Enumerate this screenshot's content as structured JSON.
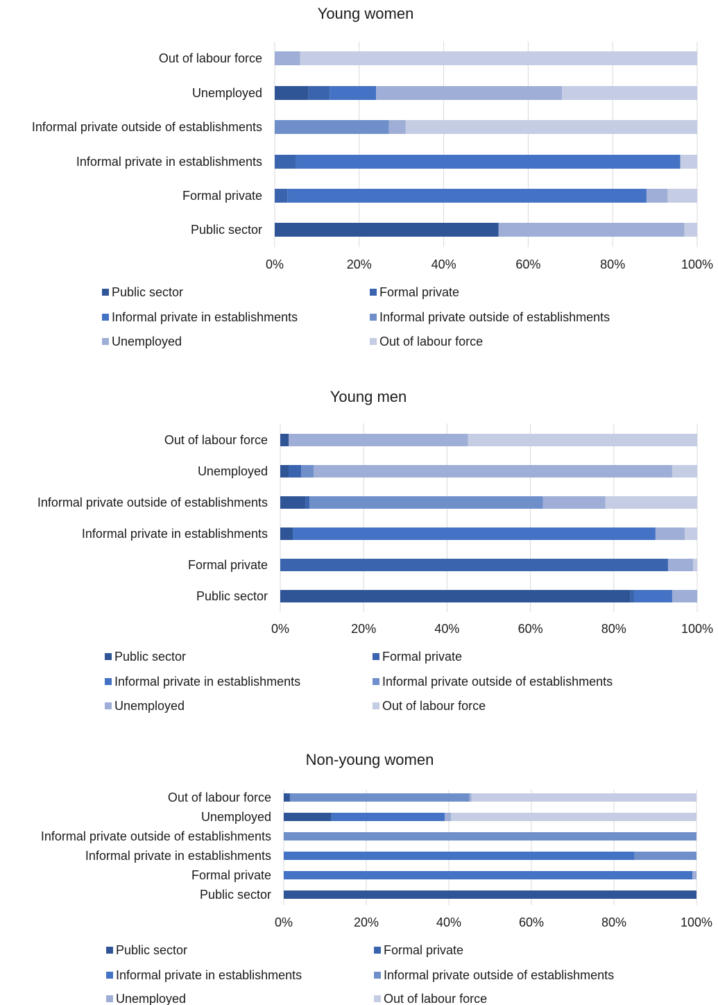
{
  "colors": [
    "#2f5597",
    "#3a64ad",
    "#4472c4",
    "#6f8fcb",
    "#9eaed6",
    "#c5cde4"
  ],
  "chart_data": [
    {
      "type": "bar",
      "orientation": "horizontal",
      "stacked": "percent",
      "title": "Young women",
      "categories": [
        "Out of labour force",
        "Unemployed",
        "Informal private outside of establishments",
        "Informal private in establishments",
        "Formal private",
        "Public sector"
      ],
      "series": [
        {
          "name": "Public sector",
          "values": [
            0,
            8,
            0,
            0,
            0,
            53
          ]
        },
        {
          "name": "Formal private",
          "values": [
            0,
            5,
            0,
            5,
            3,
            0
          ]
        },
        {
          "name": "Informal private in establishments",
          "values": [
            0,
            11,
            0,
            91,
            85,
            0
          ]
        },
        {
          "name": "Informal private outside of establishments",
          "values": [
            0,
            0,
            27,
            0,
            0,
            0
          ]
        },
        {
          "name": "Unemployed",
          "values": [
            6,
            44,
            4,
            0,
            5,
            44
          ]
        },
        {
          "name": "Out of labour force",
          "values": [
            94,
            32,
            69,
            4,
            7,
            3
          ]
        }
      ],
      "x_ticks": [
        "0%",
        "20%",
        "40%",
        "60%",
        "80%",
        "100%"
      ],
      "xlim": [
        0,
        100
      ],
      "grid": true,
      "legend_position": "bottom"
    },
    {
      "type": "bar",
      "orientation": "horizontal",
      "stacked": "percent",
      "title": "Young men",
      "categories": [
        "Out of labour force",
        "Unemployed",
        "Informal private outside of establishments",
        "Informal private in establishments",
        "Formal private",
        "Public sector"
      ],
      "series": [
        {
          "name": "Public sector",
          "values": [
            2,
            2,
            6,
            3,
            0,
            84
          ]
        },
        {
          "name": "Formal private",
          "values": [
            0,
            3,
            1,
            0,
            93,
            1
          ]
        },
        {
          "name": "Informal private in establishments",
          "values": [
            0,
            0,
            0,
            87,
            0,
            9
          ]
        },
        {
          "name": "Informal private outside of establishments",
          "values": [
            0,
            3,
            56,
            0,
            0,
            0
          ]
        },
        {
          "name": "Unemployed",
          "values": [
            43,
            86,
            15,
            7,
            6,
            6
          ]
        },
        {
          "name": "Out of labour force",
          "values": [
            55,
            6,
            22,
            3,
            1,
            0
          ]
        }
      ],
      "x_ticks": [
        "0%",
        "20%",
        "40%",
        "60%",
        "80%",
        "100%"
      ],
      "xlim": [
        0,
        100
      ],
      "grid": true,
      "legend_position": "bottom"
    },
    {
      "type": "bar",
      "orientation": "horizontal",
      "stacked": "percent",
      "title": "Non-young women",
      "categories": [
        "Out of labour force",
        "Unemployed",
        "Informal private outside of establishments",
        "Informal private in establishments",
        "Formal private",
        "Public sector"
      ],
      "series": [
        {
          "name": "Public sector",
          "values": [
            1.5,
            11.5,
            0,
            0,
            0,
            100
          ]
        },
        {
          "name": "Formal private",
          "values": [
            0,
            0,
            0,
            0,
            0,
            0
          ]
        },
        {
          "name": "Informal private in establishments",
          "values": [
            0,
            27.5,
            0,
            85,
            99,
            0
          ]
        },
        {
          "name": "Informal private outside of establishments",
          "values": [
            43.5,
            0,
            100,
            15,
            0,
            0
          ]
        },
        {
          "name": "Unemployed",
          "values": [
            0.5,
            1.5,
            0,
            0,
            1,
            0
          ]
        },
        {
          "name": "Out of labour force",
          "values": [
            54.5,
            59.5,
            0,
            0,
            0,
            0
          ]
        }
      ],
      "x_ticks": [
        "0%",
        "20%",
        "40%",
        "60%",
        "80%",
        "100%"
      ],
      "xlim": [
        0,
        100
      ],
      "grid": true,
      "legend_position": "bottom"
    }
  ]
}
